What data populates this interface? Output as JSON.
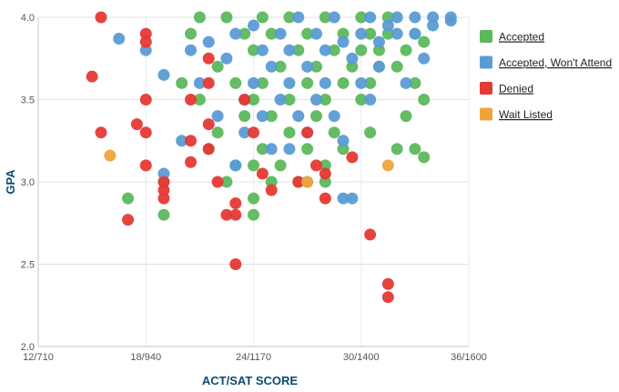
{
  "colors": {
    "accepted": "#5cb85c",
    "accepted_wont_attend": "#5b9bd5",
    "denied": "#e53935",
    "wait_listed": "#f0a33c"
  },
  "chart_data": {
    "type": "scatter",
    "xlabel": "ACT/SAT SCORE",
    "ylabel": "GPA",
    "xlim": [
      12,
      36
    ],
    "ylim": [
      2.0,
      4.0
    ],
    "grid": true,
    "legend_position": "right",
    "x_ticks": [
      {
        "value": 12,
        "label": "12/710"
      },
      {
        "value": 18,
        "label": "18/940"
      },
      {
        "value": 24,
        "label": "24/1170"
      },
      {
        "value": 30,
        "label": "30/1400"
      },
      {
        "value": 36,
        "label": "36/1600"
      }
    ],
    "y_ticks": [
      {
        "value": 2.0,
        "label": "2.0"
      },
      {
        "value": 2.5,
        "label": "2.5"
      },
      {
        "value": 3.0,
        "label": "3.0"
      },
      {
        "value": 3.5,
        "label": "3.5"
      },
      {
        "value": 4.0,
        "label": "4.0"
      }
    ],
    "series": [
      {
        "name": "Accepted",
        "color_key": "accepted",
        "points": [
          [
            17.0,
            2.9
          ],
          [
            19.0,
            2.8
          ],
          [
            19.0,
            3.0
          ],
          [
            20.0,
            3.6
          ],
          [
            20.5,
            3.9
          ],
          [
            21.0,
            4.0
          ],
          [
            21.0,
            3.5
          ],
          [
            21.5,
            3.2
          ],
          [
            22.0,
            3.7
          ],
          [
            22.0,
            3.3
          ],
          [
            22.5,
            3.0
          ],
          [
            22.5,
            4.0
          ],
          [
            23.0,
            3.6
          ],
          [
            23.0,
            3.1
          ],
          [
            23.5,
            3.9
          ],
          [
            23.5,
            3.4
          ],
          [
            24.0,
            3.8
          ],
          [
            24.0,
            3.5
          ],
          [
            24.0,
            3.1
          ],
          [
            24.0,
            2.9
          ],
          [
            24.0,
            2.8
          ],
          [
            24.5,
            4.0
          ],
          [
            24.5,
            3.6
          ],
          [
            24.5,
            3.2
          ],
          [
            25.0,
            3.9
          ],
          [
            25.0,
            3.4
          ],
          [
            25.0,
            3.0
          ],
          [
            25.5,
            3.7
          ],
          [
            25.5,
            3.1
          ],
          [
            26.0,
            4.0
          ],
          [
            26.0,
            3.5
          ],
          [
            26.0,
            3.3
          ],
          [
            26.5,
            3.8
          ],
          [
            26.5,
            3.0
          ],
          [
            27.0,
            3.9
          ],
          [
            27.0,
            3.6
          ],
          [
            27.0,
            3.2
          ],
          [
            27.5,
            3.7
          ],
          [
            27.5,
            3.4
          ],
          [
            28.0,
            4.0
          ],
          [
            28.0,
            3.5
          ],
          [
            28.0,
            3.1
          ],
          [
            28.0,
            3.0
          ],
          [
            28.5,
            3.8
          ],
          [
            28.5,
            3.3
          ],
          [
            29.0,
            3.9
          ],
          [
            29.0,
            3.6
          ],
          [
            29.0,
            3.2
          ],
          [
            29.5,
            3.7
          ],
          [
            30.0,
            4.0
          ],
          [
            30.0,
            3.8
          ],
          [
            30.0,
            3.5
          ],
          [
            30.5,
            3.9
          ],
          [
            30.5,
            3.6
          ],
          [
            30.5,
            3.3
          ],
          [
            31.0,
            3.8
          ],
          [
            31.0,
            3.7
          ],
          [
            31.5,
            4.0
          ],
          [
            31.5,
            3.9
          ],
          [
            32.0,
            3.2
          ],
          [
            32.0,
            3.7
          ],
          [
            32.5,
            3.4
          ],
          [
            32.5,
            3.8
          ],
          [
            33.0,
            3.9
          ],
          [
            33.0,
            3.6
          ],
          [
            33.0,
            3.2
          ],
          [
            33.5,
            3.85
          ],
          [
            33.5,
            3.5
          ],
          [
            33.5,
            3.15
          ]
        ]
      },
      {
        "name": "Accepted, Won't Attend",
        "color_key": "accepted_wont_attend",
        "points": [
          [
            16.5,
            3.87
          ],
          [
            18.0,
            3.8
          ],
          [
            19.0,
            3.65
          ],
          [
            19.0,
            3.05
          ],
          [
            20.0,
            3.25
          ],
          [
            20.5,
            3.8
          ],
          [
            21.0,
            3.6
          ],
          [
            21.5,
            3.85
          ],
          [
            22.0,
            3.4
          ],
          [
            22.5,
            3.75
          ],
          [
            23.0,
            3.9
          ],
          [
            23.0,
            3.1
          ],
          [
            23.5,
            3.5
          ],
          [
            23.5,
            3.3
          ],
          [
            24.0,
            3.95
          ],
          [
            24.0,
            3.6
          ],
          [
            24.5,
            3.8
          ],
          [
            24.5,
            3.4
          ],
          [
            25.0,
            3.7
          ],
          [
            25.0,
            3.2
          ],
          [
            25.5,
            3.9
          ],
          [
            25.5,
            3.5
          ],
          [
            26.0,
            3.8
          ],
          [
            26.0,
            3.6
          ],
          [
            26.5,
            4.0
          ],
          [
            26.5,
            3.4
          ],
          [
            27.0,
            3.7
          ],
          [
            27.0,
            3.3
          ],
          [
            27.5,
            3.9
          ],
          [
            27.5,
            3.5
          ],
          [
            28.0,
            3.8
          ],
          [
            28.0,
            3.6
          ],
          [
            28.5,
            4.0
          ],
          [
            28.5,
            3.4
          ],
          [
            29.0,
            3.85
          ],
          [
            29.0,
            3.25
          ],
          [
            29.5,
            3.75
          ],
          [
            29.5,
            2.9
          ],
          [
            30.0,
            3.9
          ],
          [
            30.0,
            3.6
          ],
          [
            30.5,
            4.0
          ],
          [
            30.5,
            3.5
          ],
          [
            31.0,
            3.85
          ],
          [
            31.0,
            3.7
          ],
          [
            31.5,
            3.95
          ],
          [
            32.0,
            4.0
          ],
          [
            32.0,
            3.9
          ],
          [
            32.5,
            3.6
          ],
          [
            33.0,
            4.0
          ],
          [
            33.0,
            3.9
          ],
          [
            33.5,
            3.75
          ],
          [
            34.0,
            4.0
          ],
          [
            34.0,
            3.95
          ],
          [
            35.0,
            4.0
          ],
          [
            35.0,
            3.98
          ],
          [
            26.0,
            3.2
          ],
          [
            27.0,
            3.0
          ],
          [
            29.0,
            2.9
          ]
        ]
      },
      {
        "name": "Denied",
        "color_key": "denied",
        "points": [
          [
            15.0,
            3.64
          ],
          [
            15.5,
            4.0
          ],
          [
            15.5,
            3.3
          ],
          [
            17.0,
            2.77
          ],
          [
            17.5,
            3.35
          ],
          [
            18.0,
            3.9
          ],
          [
            18.0,
            3.85
          ],
          [
            18.0,
            3.5
          ],
          [
            18.0,
            3.3
          ],
          [
            18.0,
            3.1
          ],
          [
            19.0,
            3.0
          ],
          [
            19.0,
            2.95
          ],
          [
            19.0,
            2.9
          ],
          [
            20.5,
            3.5
          ],
          [
            20.5,
            3.25
          ],
          [
            20.5,
            3.12
          ],
          [
            21.5,
            3.75
          ],
          [
            21.5,
            3.6
          ],
          [
            21.5,
            3.35
          ],
          [
            21.5,
            3.2
          ],
          [
            22.0,
            3.0
          ],
          [
            22.5,
            2.8
          ],
          [
            23.0,
            2.8
          ],
          [
            23.0,
            2.87
          ],
          [
            23.5,
            3.5
          ],
          [
            23.0,
            2.5
          ],
          [
            24.0,
            3.3
          ],
          [
            24.5,
            3.05
          ],
          [
            25.0,
            2.95
          ],
          [
            26.5,
            3.0
          ],
          [
            27.0,
            3.3
          ],
          [
            27.5,
            3.1
          ],
          [
            28.0,
            3.05
          ],
          [
            28.0,
            2.9
          ],
          [
            29.5,
            3.15
          ],
          [
            30.5,
            2.68
          ],
          [
            31.5,
            2.38
          ],
          [
            31.5,
            2.3
          ]
        ]
      },
      {
        "name": "Wait Listed",
        "color_key": "wait_listed",
        "points": [
          [
            16.0,
            3.16
          ],
          [
            31.5,
            3.1
          ],
          [
            27.0,
            3.0
          ]
        ]
      }
    ]
  }
}
